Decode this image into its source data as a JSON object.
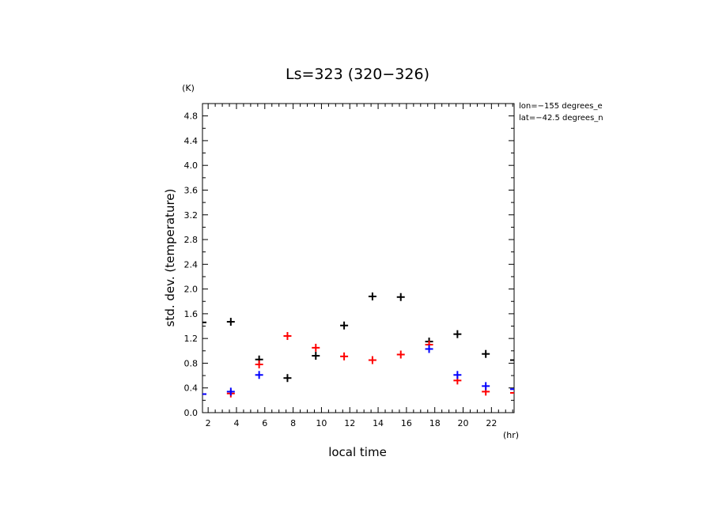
{
  "chart_data": {
    "type": "scatter",
    "title": "Ls=323 (320−326)",
    "xlabel": "local time",
    "ylabel": "std. dev. (temperature)",
    "x_unit": "(hr)",
    "y_unit": "(K)",
    "annotations": [
      "lon=−155 degrees_e",
      "lat=−42.5 degrees_n"
    ],
    "xlim": [
      1.6,
      23.6
    ],
    "ylim": [
      0.0,
      5.0
    ],
    "x_ticks": [
      2,
      4,
      6,
      8,
      10,
      12,
      14,
      16,
      18,
      20,
      22
    ],
    "y_ticks": [
      0.0,
      0.4,
      0.8,
      1.2,
      1.6,
      2.0,
      2.4,
      2.8,
      3.2,
      3.6,
      4.0,
      4.4,
      4.8
    ],
    "x_tick_labels": [
      "2",
      "4",
      "6",
      "8",
      "10",
      "12",
      "14",
      "16",
      "18",
      "20",
      "22"
    ],
    "y_tick_labels": [
      "0.0",
      "0.4",
      "0.8",
      "1.2",
      "1.6",
      "2.0",
      "2.4",
      "2.8",
      "3.2",
      "3.6",
      "4.0",
      "4.4",
      "4.8"
    ],
    "grid": false,
    "legend": "none",
    "series": [
      {
        "color": "#000000",
        "marker": "plus",
        "x": [
          1.6,
          3.6,
          5.6,
          7.6,
          9.6,
          11.6,
          13.6,
          15.6,
          17.6,
          19.6,
          21.6,
          23.6
        ],
        "y": [
          1.46,
          1.47,
          0.86,
          0.56,
          0.92,
          1.41,
          1.88,
          1.87,
          1.15,
          1.27,
          0.95,
          0.85
        ]
      },
      {
        "color": "#ff0000",
        "marker": "plus",
        "x": [
          1.6,
          3.6,
          5.6,
          7.6,
          9.6,
          11.6,
          13.6,
          15.6,
          17.6,
          19.6,
          21.6,
          23.6
        ],
        "y": [
          0.3,
          0.31,
          0.78,
          1.24,
          1.05,
          0.91,
          0.85,
          0.94,
          1.1,
          0.52,
          0.34,
          0.32
        ]
      },
      {
        "color": "#0000ff",
        "marker": "plus",
        "x": [
          1.6,
          3.6,
          5.6,
          7.6,
          9.6,
          11.6,
          13.6,
          15.6,
          17.6,
          19.6,
          21.6,
          23.6
        ],
        "y": [
          0.3,
          0.34,
          0.61,
          null,
          null,
          null,
          null,
          null,
          1.03,
          0.61,
          0.43,
          0.38
        ]
      }
    ]
  }
}
